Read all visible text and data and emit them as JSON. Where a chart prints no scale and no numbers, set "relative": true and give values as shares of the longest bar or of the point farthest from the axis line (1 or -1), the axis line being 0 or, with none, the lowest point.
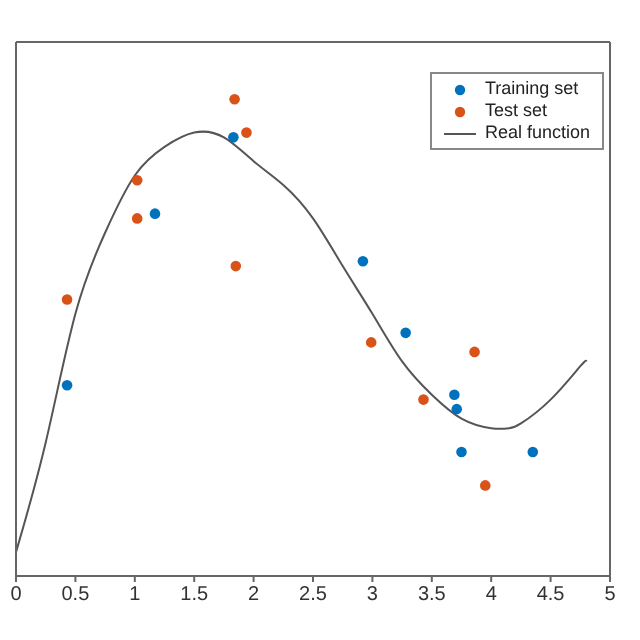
{
  "chart_data": {
    "type": "scatter",
    "relative": true,
    "xlim": [
      0,
      5
    ],
    "xticks": [
      0,
      0.5,
      1,
      1.5,
      2,
      2.5,
      3,
      3.5,
      4,
      4.5,
      5
    ],
    "legend": "top right",
    "series": [
      {
        "name": "Training set",
        "marker": "circle",
        "color": "#0072bd",
        "x": [
          0.43,
          1.17,
          1.83,
          2.92,
          3.28,
          3.69,
          3.71,
          3.75,
          4.35
        ],
        "values": [
          0.4,
          0.76,
          0.92,
          0.66,
          0.51,
          0.38,
          0.35,
          0.26,
          0.26
        ]
      },
      {
        "name": "Test set",
        "marker": "circle",
        "color": "#d95319",
        "x": [
          0.43,
          1.02,
          1.02,
          1.84,
          1.94,
          1.85,
          2.99,
          3.43,
          3.86,
          3.95
        ],
        "values": [
          0.58,
          0.83,
          0.75,
          1.0,
          0.93,
          0.65,
          0.49,
          0.37,
          0.47,
          0.19
        ]
      },
      {
        "name": "Real function",
        "type": "line",
        "color": "#555555",
        "x": [
          0,
          0.25,
          0.5,
          0.75,
          1,
          1.25,
          1.5,
          1.75,
          2,
          2.25,
          2.5,
          2.75,
          3,
          3.25,
          3.5,
          3.75,
          4,
          4.15,
          4.25,
          4.5,
          4.75,
          4.8
        ],
        "values": [
          0.05,
          0.28,
          0.55,
          0.72,
          0.84,
          0.9,
          0.93,
          0.92,
          0.87,
          0.82,
          0.75,
          0.65,
          0.55,
          0.45,
          0.38,
          0.33,
          0.31,
          0.31,
          0.32,
          0.37,
          0.44,
          0.45
        ]
      }
    ]
  }
}
